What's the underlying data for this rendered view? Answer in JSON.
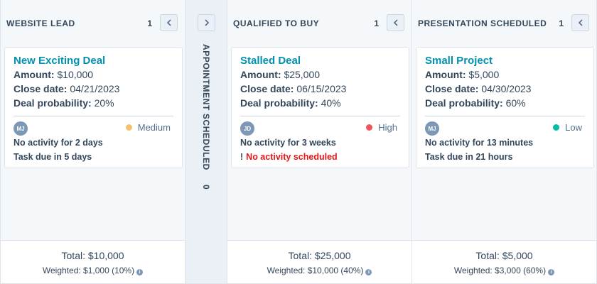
{
  "columns": [
    {
      "title": "WEBSITE LEAD",
      "count": "1",
      "card": {
        "name": "New Exciting Deal",
        "amount_label": "Amount:",
        "amount": "$10,000",
        "close_label": "Close date:",
        "close_date": "04/21/2023",
        "prob_label": "Deal probability:",
        "probability": "20%",
        "owner_initials": "MJ",
        "priority": "Medium",
        "priority_color": "#f5c26b",
        "activity": "No activity for 2 days",
        "task": "Task due in 5 days"
      },
      "total": "Total: $10,000",
      "weighted": "Weighted: $1,000 (10%)"
    },
    {
      "title": "QUALIFIED TO BUY",
      "count": "1",
      "card": {
        "name": "Stalled Deal",
        "amount_label": "Amount:",
        "amount": "$25,000",
        "close_label": "Close date:",
        "close_date": "06/15/2023",
        "prob_label": "Deal probability:",
        "probability": "40%",
        "owner_initials": "JD",
        "priority": "High",
        "priority_color": "#f2545b",
        "activity": "No activity for 3 weeks",
        "task_warning_mark": "!",
        "task": "No activity scheduled"
      },
      "total": "Total: $25,000",
      "weighted": "Weighted: $10,000 (40%)"
    },
    {
      "title": "PRESENTATION SCHEDULED",
      "count": "1",
      "card": {
        "name": "Small Project",
        "amount_label": "Amount:",
        "amount": "$5,000",
        "close_label": "Close date:",
        "close_date": "04/30/2023",
        "prob_label": "Deal probability:",
        "probability": "60%",
        "owner_initials": "MJ",
        "priority": "Low",
        "priority_color": "#00bda5",
        "activity": "No activity for 13 minutes",
        "task": "Task due in 21 hours"
      },
      "total": "Total: $5,000",
      "weighted": "Weighted: $3,000 (60%)"
    }
  ],
  "collapsed_column": {
    "title": "APPOINTMENT SCHEDULED",
    "count": "0"
  },
  "icons": {
    "collapse": "chevron-left-icon",
    "expand": "chevron-right-icon",
    "info": "info-icon"
  }
}
